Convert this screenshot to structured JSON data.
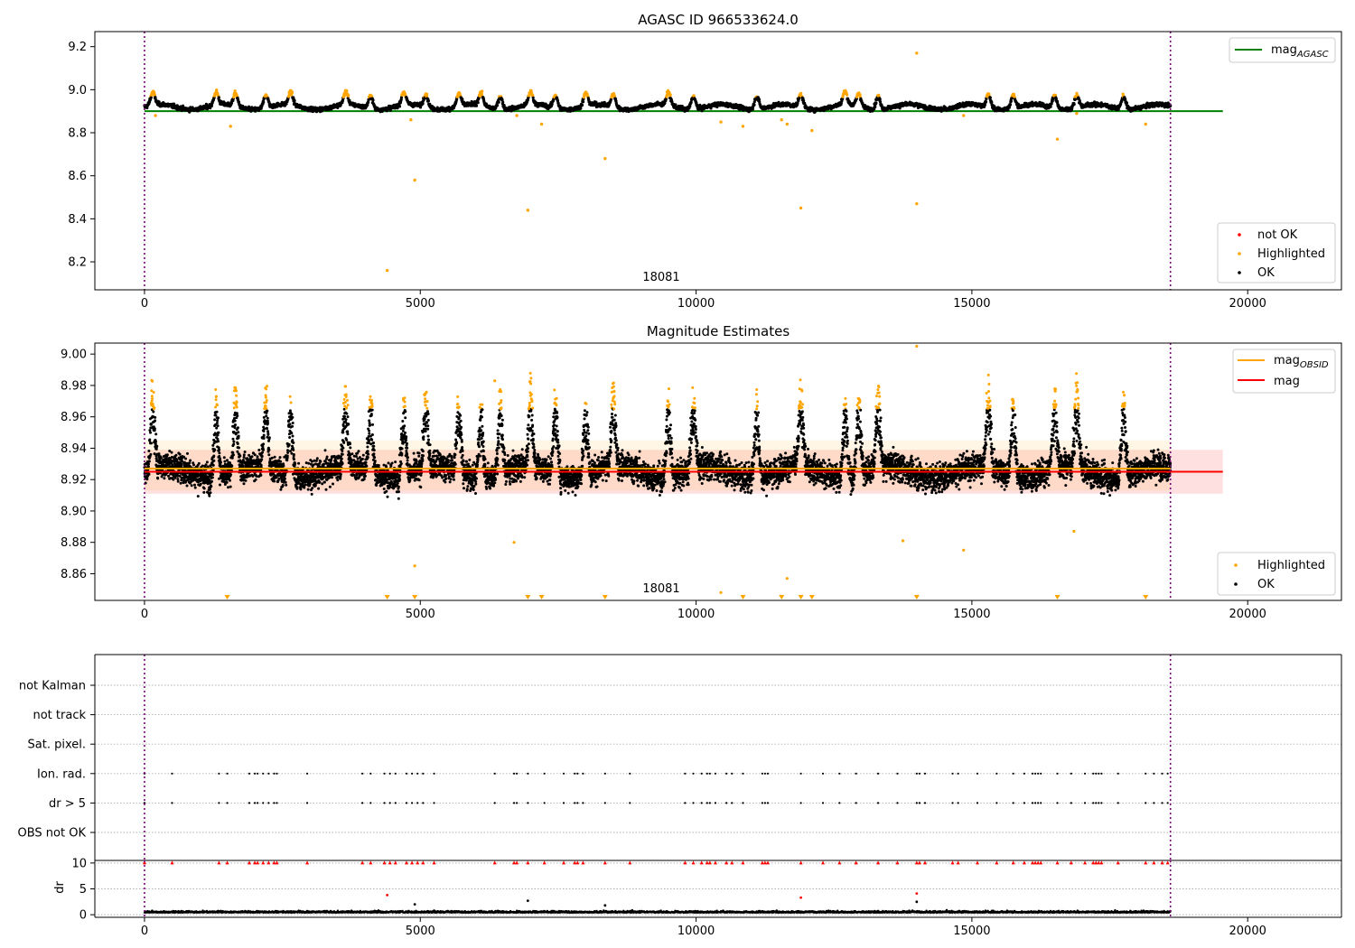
{
  "figure": {
    "background": "#ffffff"
  },
  "colors": {
    "ok": "#000000",
    "highlighted": "#ffa500",
    "not_ok": "#ff0000",
    "agasc_line": "#008000",
    "obs_line": "#ffa500",
    "mag_line": "#ff0000",
    "band": "#ff0000",
    "marker_line": "#800080"
  },
  "chart_data": [
    {
      "id": "agasc",
      "type": "scatter",
      "title": "AGASC ID 966533624.0",
      "xlim": [
        -900,
        21700
      ],
      "ylim": [
        8.07,
        9.27
      ],
      "xticks": [
        0,
        5000,
        10000,
        15000,
        20000
      ],
      "yticks": [
        8.2,
        8.4,
        8.6,
        8.8,
        9.0,
        9.2
      ],
      "ytick_labels": [
        "8.2",
        "8.4",
        "8.6",
        "8.8",
        "9.0",
        "9.2"
      ],
      "vlines": [
        0,
        18600
      ],
      "obsid_label": {
        "text": "18081",
        "x": 9300
      },
      "reference_line": {
        "name_main": "mag",
        "name_sub": "AGASC",
        "y": 8.9,
        "x_range": [
          0,
          19550
        ]
      },
      "series_generated": {
        "x_range": [
          0,
          18600
        ],
        "n": 4000,
        "baseline": 8.92,
        "noise": 0.018,
        "bump_height": 0.06
      },
      "bump_centers": [
        150,
        1300,
        1650,
        2200,
        2650,
        3650,
        4100,
        4700,
        5100,
        5700,
        6100,
        6450,
        7000,
        7450,
        8000,
        8500,
        9500,
        9950,
        11100,
        11900,
        12700,
        12950,
        13300,
        15300,
        15750,
        16500,
        16900,
        17750
      ],
      "highlighted": [
        {
          "x": 200,
          "y": 8.88
        },
        {
          "x": 1560,
          "y": 8.83
        },
        {
          "x": 4400,
          "y": 8.16
        },
        {
          "x": 4830,
          "y": 8.86
        },
        {
          "x": 4900,
          "y": 8.58
        },
        {
          "x": 6750,
          "y": 8.88
        },
        {
          "x": 6950,
          "y": 8.44
        },
        {
          "x": 7200,
          "y": 8.84
        },
        {
          "x": 8350,
          "y": 8.68
        },
        {
          "x": 10450,
          "y": 8.85
        },
        {
          "x": 10850,
          "y": 8.83
        },
        {
          "x": 11550,
          "y": 8.86
        },
        {
          "x": 11650,
          "y": 8.84
        },
        {
          "x": 11900,
          "y": 8.45
        },
        {
          "x": 12100,
          "y": 8.81
        },
        {
          "x": 14000,
          "y": 9.17
        },
        {
          "x": 14000,
          "y": 8.47
        },
        {
          "x": 14850,
          "y": 8.88
        },
        {
          "x": 16550,
          "y": 8.77
        },
        {
          "x": 16900,
          "y": 8.89
        },
        {
          "x": 18150,
          "y": 8.84
        }
      ],
      "legend_line": [
        {
          "label_main": "mag",
          "label_sub": "AGASC",
          "color": "#008000"
        }
      ],
      "legend_markers": [
        {
          "label": "not OK",
          "color": "#ff0000"
        },
        {
          "label": "Highlighted",
          "color": "#ffa500"
        },
        {
          "label": "OK",
          "color": "#000000"
        }
      ]
    },
    {
      "id": "estimates",
      "type": "scatter",
      "title": "Magnitude Estimates",
      "xlim": [
        -900,
        21700
      ],
      "ylim": [
        8.843,
        9.007
      ],
      "xticks": [
        0,
        5000,
        10000,
        15000,
        20000
      ],
      "yticks": [
        8.86,
        8.88,
        8.9,
        8.92,
        8.94,
        8.96,
        8.98,
        9.0
      ],
      "ytick_labels": [
        "8.86",
        "8.88",
        "8.90",
        "8.92",
        "8.94",
        "8.96",
        "8.98",
        "9.00"
      ],
      "vlines": [
        0,
        18600
      ],
      "obsid_label": {
        "text": "18081",
        "x": 9300
      },
      "mag_line": {
        "y": 8.925,
        "x_range": [
          0,
          19550
        ]
      },
      "mag_band": {
        "low": 8.911,
        "high": 8.939
      },
      "obs_band": {
        "low": 8.913,
        "high": 8.945,
        "x_range": [
          0,
          18600
        ]
      },
      "obs_line": {
        "y": 8.927,
        "x_range": [
          0,
          18600
        ]
      },
      "series_generated": {
        "x_range": [
          0,
          18600
        ],
        "n": 9000,
        "baseline": 8.925,
        "noise": 0.013,
        "bump_height": 0.055,
        "threshold": 8.965
      },
      "outliers": [
        {
          "x": 4900,
          "y": 8.865
        },
        {
          "x": 6700,
          "y": 8.88
        },
        {
          "x": 6350,
          "y": 8.983
        },
        {
          "x": 10450,
          "y": 8.848
        },
        {
          "x": 11650,
          "y": 8.857
        },
        {
          "x": 13750,
          "y": 8.881
        },
        {
          "x": 14000,
          "y": 9.005
        },
        {
          "x": 14850,
          "y": 8.875
        },
        {
          "x": 16850,
          "y": 8.887
        }
      ],
      "low_markers": [
        1500,
        4400,
        4900,
        6950,
        7200,
        8350,
        10850,
        11550,
        11900,
        12100,
        14000,
        16550,
        18150
      ],
      "legend_line": [
        {
          "label_main": "mag",
          "label_sub": "OBSID",
          "color": "#ffa500"
        },
        {
          "label_main": "mag",
          "label_sub": "",
          "color": "#ff0000"
        }
      ],
      "legend_markers": [
        {
          "label": "Highlighted",
          "color": "#ffa500"
        },
        {
          "label": "OK",
          "color": "#000000"
        }
      ]
    },
    {
      "id": "flags",
      "type": "scatter",
      "xlim": [
        -900,
        21700
      ],
      "categories": [
        "not Kalman",
        "not track",
        "Sat. pixel.",
        "Ion. rad.",
        "dr > 5",
        "OBS not OK"
      ],
      "vlines": [
        0,
        18600
      ],
      "event_x": [
        0,
        500,
        1350,
        1500,
        1900,
        2000,
        2050,
        2150,
        2250,
        2350,
        2400,
        2950,
        3950,
        4100,
        4350,
        4450,
        4550,
        4750,
        4850,
        4950,
        5050,
        5250,
        6350,
        6700,
        6750,
        6950,
        7250,
        7600,
        7800,
        7850,
        7950,
        8350,
        8800,
        9800,
        9950,
        10100,
        10200,
        10250,
        10350,
        10550,
        10650,
        10850,
        11200,
        11250,
        11300,
        11900,
        12300,
        12600,
        12900,
        13300,
        13650,
        14000,
        14050,
        14150,
        14650,
        14750,
        15100,
        15450,
        15750,
        15950,
        16100,
        16150,
        16200,
        16250,
        16550,
        16800,
        17050,
        17200,
        17250,
        17300,
        17350,
        17650,
        18150,
        18300,
        18450,
        18550
      ]
    },
    {
      "id": "dr",
      "type": "scatter",
      "xlim": [
        -900,
        21700
      ],
      "ylim": [
        -0.5,
        10.5
      ],
      "ylabel": "dr",
      "yticks": [
        0,
        5,
        10
      ],
      "ytick_labels": [
        "0",
        "5",
        "10"
      ],
      "xticks": [
        0,
        5000,
        10000,
        15000,
        20000
      ],
      "vlines": [
        0,
        18600
      ],
      "series_generated": {
        "x_range": [
          0,
          18600
        ],
        "n": 3500,
        "mean": 0.4,
        "noise": 0.25
      },
      "extra_points": [
        {
          "x": 4900,
          "y": 2.0,
          "color": "#000000"
        },
        {
          "x": 6950,
          "y": 2.7,
          "color": "#000000"
        },
        {
          "x": 8350,
          "y": 1.8,
          "color": "#000000"
        },
        {
          "x": 14000,
          "y": 2.5,
          "color": "#000000"
        },
        {
          "x": 4400,
          "y": 3.8,
          "color": "#ff0000"
        },
        {
          "x": 11900,
          "y": 3.3,
          "color": "#ff0000"
        },
        {
          "x": 14000,
          "y": 4.1,
          "color": "#ff0000"
        }
      ]
    }
  ]
}
